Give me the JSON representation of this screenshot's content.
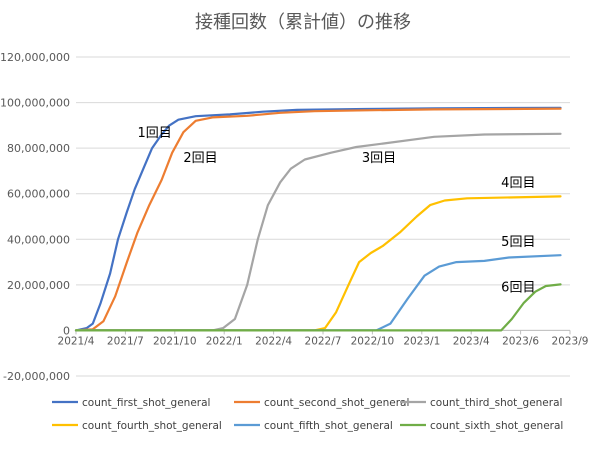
{
  "chart_data": {
    "type": "line",
    "title": "接種回数（累計値）の推移",
    "xlabel": "",
    "ylabel": "",
    "ylim": [
      -20000000,
      120000000
    ],
    "xlim": [
      "2021-04-01",
      "2023-09-01"
    ],
    "y_ticks": [
      "120,000,000",
      "100,000,000",
      "80,000,000",
      "60,000,000",
      "40,000,000",
      "20,000,000",
      "0",
      "-20,000,000"
    ],
    "x_ticks": [
      "2021/4",
      "2021/7",
      "2021/10",
      "2022/1",
      "2022/4",
      "2022/7",
      "2022/10",
      "2023/1",
      "2023/4",
      "2023/6",
      "2023/9"
    ],
    "grid": true,
    "legend_position": "bottom",
    "series": [
      {
        "name": "count_first_shot_general",
        "color": "#4472C4",
        "points": [
          [
            "2021-04-01",
            0
          ],
          [
            "2021-04-20",
            1000000
          ],
          [
            "2021-05-01",
            3000000
          ],
          [
            "2021-05-15",
            12000000
          ],
          [
            "2021-06-01",
            25000000
          ],
          [
            "2021-06-15",
            40000000
          ],
          [
            "2021-07-01",
            52000000
          ],
          [
            "2021-07-15",
            62000000
          ],
          [
            "2021-08-01",
            72000000
          ],
          [
            "2021-08-15",
            80000000
          ],
          [
            "2021-09-01",
            86000000
          ],
          [
            "2021-09-15",
            90000000
          ],
          [
            "2021-10-01",
            92500000
          ],
          [
            "2021-11-01",
            94000000
          ],
          [
            "2022-01-01",
            94800000
          ],
          [
            "2022-03-01",
            96000000
          ],
          [
            "2022-05-01",
            96800000
          ],
          [
            "2022-09-01",
            97200000
          ],
          [
            "2023-01-01",
            97500000
          ],
          [
            "2023-08-15",
            97700000
          ]
        ]
      },
      {
        "name": "count_second_shot_general",
        "color": "#ED7D31",
        "points": [
          [
            "2021-04-01",
            0
          ],
          [
            "2021-05-01",
            500000
          ],
          [
            "2021-05-20",
            4000000
          ],
          [
            "2021-06-10",
            15000000
          ],
          [
            "2021-07-01",
            30000000
          ],
          [
            "2021-07-20",
            43000000
          ],
          [
            "2021-08-10",
            55000000
          ],
          [
            "2021-09-01",
            66000000
          ],
          [
            "2021-09-20",
            78000000
          ],
          [
            "2021-10-10",
            87000000
          ],
          [
            "2021-11-01",
            92000000
          ],
          [
            "2021-12-01",
            93500000
          ],
          [
            "2022-02-01",
            94200000
          ],
          [
            "2022-04-01",
            95500000
          ],
          [
            "2022-06-01",
            96200000
          ],
          [
            "2022-09-01",
            96600000
          ],
          [
            "2023-01-01",
            97000000
          ],
          [
            "2023-08-15",
            97300000
          ]
        ]
      },
      {
        "name": "count_third_shot_general",
        "color": "#A5A5A5",
        "points": [
          [
            "2021-04-01",
            0
          ],
          [
            "2021-12-01",
            0
          ],
          [
            "2021-12-20",
            1000000
          ],
          [
            "2022-01-10",
            5000000
          ],
          [
            "2022-02-01",
            20000000
          ],
          [
            "2022-02-20",
            40000000
          ],
          [
            "2022-03-10",
            55000000
          ],
          [
            "2022-04-01",
            65000000
          ],
          [
            "2022-04-20",
            71000000
          ],
          [
            "2022-05-15",
            75000000
          ],
          [
            "2022-07-01",
            78000000
          ],
          [
            "2022-08-15",
            80500000
          ],
          [
            "2022-10-01",
            82000000
          ],
          [
            "2023-01-01",
            85000000
          ],
          [
            "2023-04-01",
            86000000
          ],
          [
            "2023-08-15",
            86300000
          ]
        ]
      },
      {
        "name": "count_fourth_shot_general",
        "color": "#FFC000",
        "points": [
          [
            "2021-04-01",
            0
          ],
          [
            "2022-06-01",
            0
          ],
          [
            "2022-06-20",
            1000000
          ],
          [
            "2022-07-10",
            8000000
          ],
          [
            "2022-08-01",
            20000000
          ],
          [
            "2022-08-20",
            30000000
          ],
          [
            "2022-09-10",
            34000000
          ],
          [
            "2022-10-01",
            37000000
          ],
          [
            "2022-11-01",
            43000000
          ],
          [
            "2022-12-01",
            50000000
          ],
          [
            "2022-12-25",
            55000000
          ],
          [
            "2023-01-20",
            57000000
          ],
          [
            "2023-03-01",
            58000000
          ],
          [
            "2023-08-15",
            58800000
          ]
        ]
      },
      {
        "name": "count_fifth_shot_general",
        "color": "#5B9BD5",
        "points": [
          [
            "2021-04-01",
            0
          ],
          [
            "2022-09-20",
            0
          ],
          [
            "2022-10-15",
            3000000
          ],
          [
            "2022-11-15",
            14000000
          ],
          [
            "2022-12-15",
            24000000
          ],
          [
            "2023-01-10",
            28000000
          ],
          [
            "2023-02-10",
            30000000
          ],
          [
            "2023-04-01",
            30500000
          ],
          [
            "2023-05-15",
            32000000
          ],
          [
            "2023-08-15",
            33000000
          ]
        ]
      },
      {
        "name": "count_sixth_shot_general",
        "color": "#70AD47",
        "points": [
          [
            "2021-04-01",
            0
          ],
          [
            "2023-05-01",
            0
          ],
          [
            "2023-05-20",
            5000000
          ],
          [
            "2023-06-10",
            12000000
          ],
          [
            "2023-07-01",
            17000000
          ],
          [
            "2023-07-20",
            19500000
          ],
          [
            "2023-08-15",
            20200000
          ]
        ]
      }
    ],
    "annotations": [
      {
        "text": "1回目",
        "x": "2021-07-20",
        "y": 85000000
      },
      {
        "text": "2回目",
        "x": "2021-10-10",
        "y": 74000000
      },
      {
        "text": "3回目",
        "x": "2022-08-25",
        "y": 74000000
      },
      {
        "text": "4回目",
        "x": "2023-05-01",
        "y": 63000000
      },
      {
        "text": "5回目",
        "x": "2023-05-01",
        "y": 37000000
      },
      {
        "text": "6回目",
        "x": "2023-05-01",
        "y": 17000000
      }
    ]
  }
}
